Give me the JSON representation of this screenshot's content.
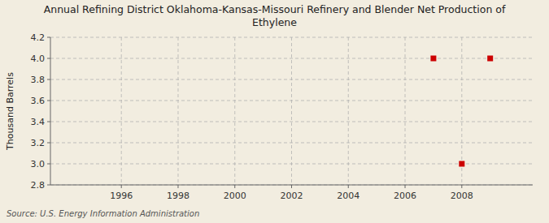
{
  "chart_data": {
    "type": "scatter",
    "title": "Annual Refining District Oklahoma-Kansas-Missouri Refinery and Blender Net Production of\nEthylene",
    "ylabel": "Thousand Barrels",
    "source": "Source: U.S. Energy Information Administration",
    "x": [
      2007,
      2008,
      2009
    ],
    "values": [
      4.0,
      3.0,
      4.0
    ],
    "color": "#cc0000",
    "marker": "square",
    "xlim": [
      1993.5,
      2010.5
    ],
    "ylim": [
      2.8,
      4.2
    ],
    "xticks": [
      1996,
      1998,
      2000,
      2002,
      2004,
      2006,
      2008
    ],
    "yticks": [
      2.8,
      {
        "value": 3.0,
        "label": "3.0"
      },
      3.2,
      3.4,
      3.6,
      3.8,
      {
        "value": 4.0,
        "label": "4.0"
      },
      4.2
    ],
    "grid": true
  }
}
